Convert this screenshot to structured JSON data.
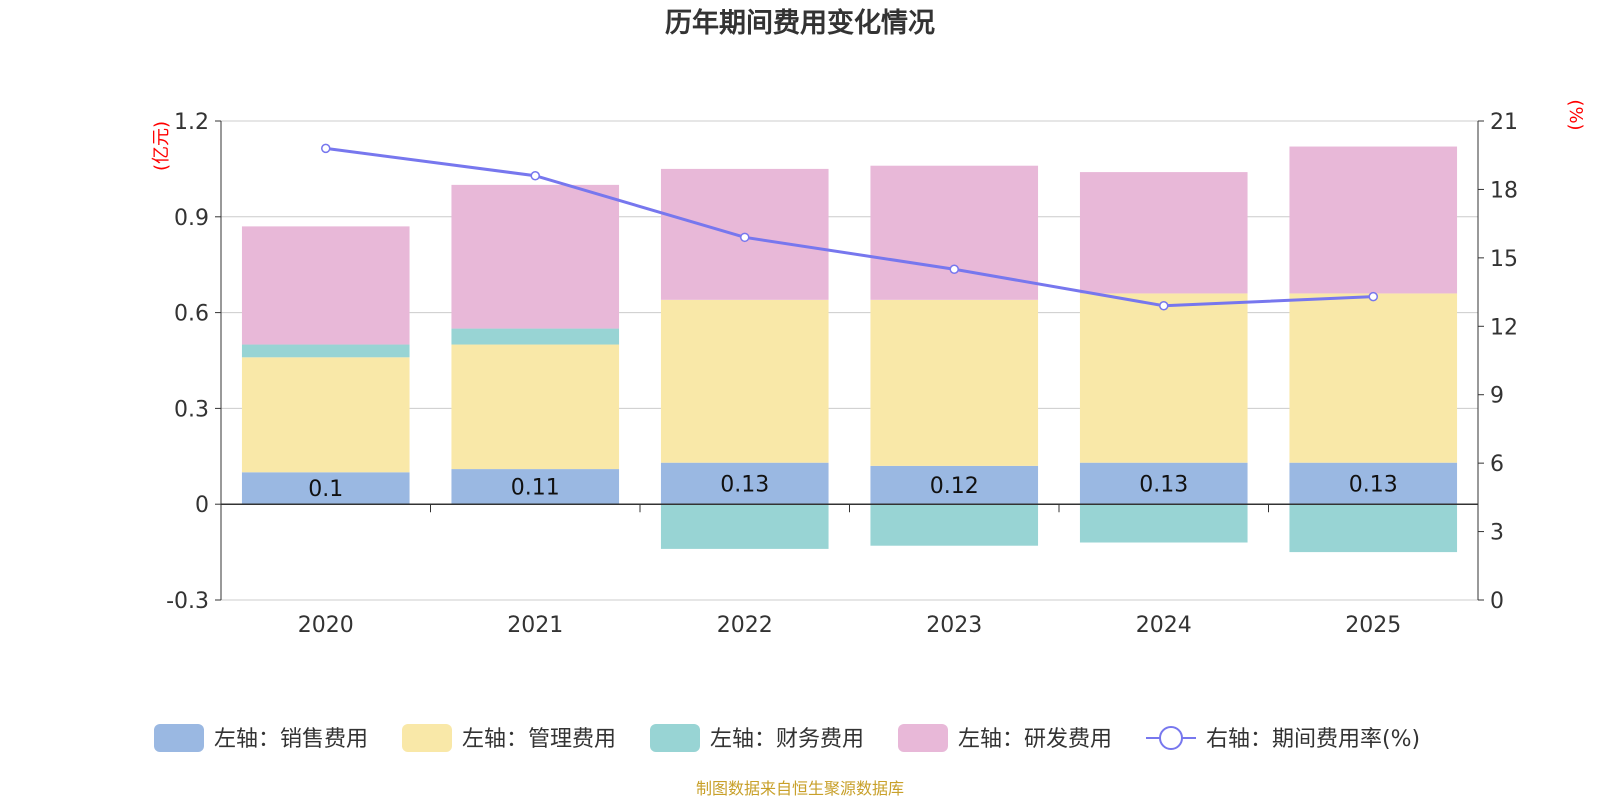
{
  "chart_data": {
    "type": "bar",
    "title": "历年期间费用变化情况",
    "categories": [
      "2020",
      "2021",
      "2022",
      "2023",
      "2024",
      "2025"
    ],
    "left_axis": {
      "unit": "(亿元)",
      "ylim": [
        -0.3,
        1.2
      ],
      "ticks": [
        -0.3,
        0,
        0.3,
        0.6,
        0.9,
        1.2
      ],
      "tick_labels": [
        "-0.3",
        "0",
        "0.3",
        "0.6",
        "0.9",
        "1.2"
      ]
    },
    "right_axis": {
      "unit": "(%)",
      "ylim": [
        0,
        21
      ],
      "ticks": [
        0,
        3,
        6,
        9,
        12,
        15,
        18,
        21
      ],
      "tick_labels": [
        "0",
        "3",
        "6",
        "9",
        "12",
        "15",
        "18",
        "21"
      ]
    },
    "series": [
      {
        "name": "左轴：销售费用",
        "kind": "bar",
        "axis": "left",
        "color": "#9ab8e2",
        "values": [
          0.1,
          0.11,
          0.13,
          0.12,
          0.13,
          0.13
        ],
        "labels": [
          "0.1",
          "0.11",
          "0.13",
          "0.12",
          "0.13",
          "0.13"
        ]
      },
      {
        "name": "左轴：管理费用",
        "kind": "bar",
        "axis": "left",
        "color": "#f9e8a8",
        "values": [
          0.36,
          0.39,
          0.51,
          0.52,
          0.53,
          0.53
        ]
      },
      {
        "name": "左轴：财务费用",
        "kind": "bar",
        "axis": "left",
        "color": "#98d4d4",
        "values": [
          0.04,
          0.05,
          -0.14,
          -0.13,
          -0.12,
          -0.15
        ]
      },
      {
        "name": "左轴：研发费用",
        "kind": "bar",
        "axis": "left",
        "color": "#e8b8d8",
        "values": [
          0.37,
          0.45,
          0.41,
          0.42,
          0.38,
          0.46
        ]
      },
      {
        "name": "右轴：期间费用率(%)",
        "kind": "line",
        "axis": "right",
        "color": "#7777ee",
        "values": [
          19.8,
          18.6,
          15.9,
          14.5,
          12.9,
          13.3
        ]
      }
    ],
    "source": "制图数据来自恒生聚源数据库",
    "grid": true,
    "legend_position": "bottom"
  }
}
